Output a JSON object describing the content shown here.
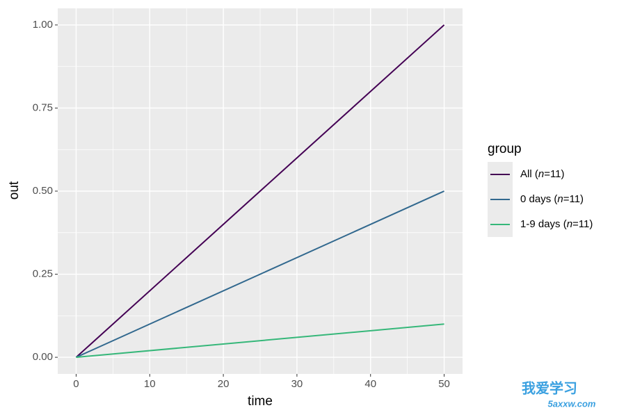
{
  "chart_data": {
    "type": "line",
    "x_label": "time",
    "y_label": "out",
    "x": [
      0,
      50
    ],
    "series": [
      {
        "name": "All (n=11)",
        "color": "#440154",
        "values": [
          0,
          1
        ]
      },
      {
        "name": "0 days (n=11)",
        "color": "#31688e",
        "values": [
          0,
          0.5
        ]
      },
      {
        "name": "1-9 days (n=11)",
        "color": "#35b779",
        "values": [
          0,
          0.1
        ]
      }
    ],
    "legend_title": "group",
    "legend_position": "right",
    "xlim": [
      -2.5,
      52.5
    ],
    "xticks": [
      0,
      10,
      20,
      30,
      40,
      50
    ],
    "ylim": [
      -0.05,
      1.05
    ],
    "yticks": [
      {
        "value": 0,
        "label": "0.00"
      },
      {
        "value": 0.25,
        "label": "0.25"
      },
      {
        "value": 0.5,
        "label": "0.50"
      },
      {
        "value": 0.75,
        "label": "0.75"
      },
      {
        "value": 1,
        "label": "1.00"
      }
    ],
    "grid": true
  },
  "watermark": {
    "text": "我爱学习",
    "url": "5axxw.com"
  }
}
